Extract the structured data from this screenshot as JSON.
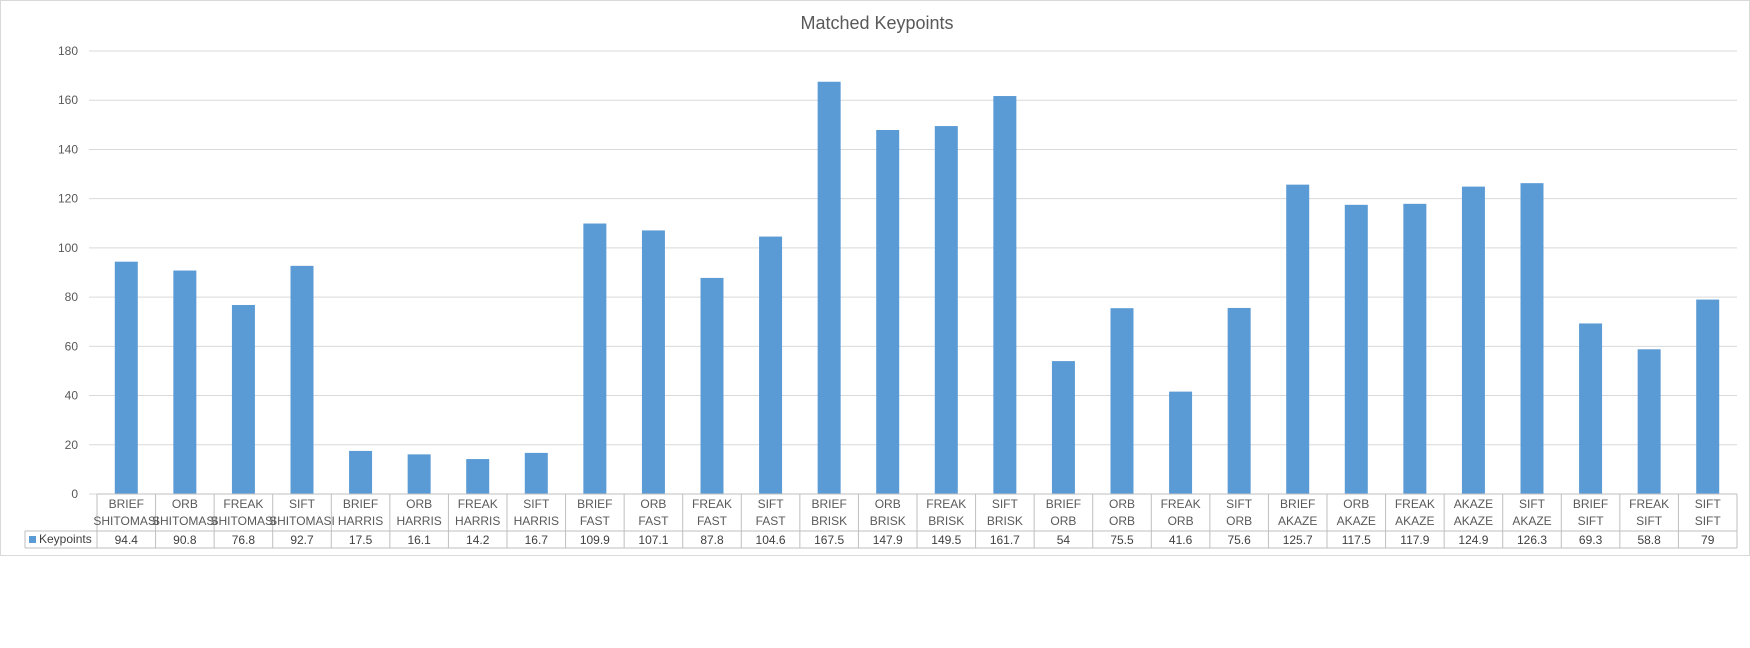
{
  "chart_data": {
    "type": "bar",
    "title": "Matched Keypoints",
    "categories": [
      [
        "BRIEF",
        "SHITOMASI"
      ],
      [
        "ORB",
        "SHITOMASI"
      ],
      [
        "FREAK",
        "SHITOMASI"
      ],
      [
        "SIFT",
        "SHITOMASI"
      ],
      [
        "BRIEF",
        "HARRIS"
      ],
      [
        "ORB",
        "HARRIS"
      ],
      [
        "FREAK",
        "HARRIS"
      ],
      [
        "SIFT",
        "HARRIS"
      ],
      [
        "BRIEF",
        "FAST"
      ],
      [
        "ORB",
        "FAST"
      ],
      [
        "FREAK",
        "FAST"
      ],
      [
        "SIFT",
        "FAST"
      ],
      [
        "BRIEF",
        "BRISK"
      ],
      [
        "ORB",
        "BRISK"
      ],
      [
        "FREAK",
        "BRISK"
      ],
      [
        "SIFT",
        "BRISK"
      ],
      [
        "BRIEF",
        "ORB"
      ],
      [
        "ORB",
        "ORB"
      ],
      [
        "FREAK",
        "ORB"
      ],
      [
        "SIFT",
        "ORB"
      ],
      [
        "BRIEF",
        "AKAZE"
      ],
      [
        "ORB",
        "AKAZE"
      ],
      [
        "FREAK",
        "AKAZE"
      ],
      [
        "AKAZE",
        "AKAZE"
      ],
      [
        "SIFT",
        "AKAZE"
      ],
      [
        "BRIEF",
        "SIFT"
      ],
      [
        "FREAK",
        "SIFT"
      ],
      [
        "SIFT",
        "SIFT"
      ]
    ],
    "series": [
      {
        "name": "Keypoints",
        "color": "#5b9bd5",
        "values": [
          94.4,
          90.8,
          76.8,
          92.7,
          17.5,
          16.1,
          14.2,
          16.7,
          109.9,
          107.1,
          87.8,
          104.6,
          167.5,
          147.9,
          149.5,
          161.7,
          54,
          75.5,
          41.6,
          75.6,
          125.7,
          117.5,
          117.9,
          124.9,
          126.3,
          69.3,
          58.8,
          79
        ]
      }
    ],
    "ylim": [
      0,
      180
    ],
    "yticks": [
      0,
      20,
      40,
      60,
      80,
      100,
      120,
      140,
      160,
      180
    ],
    "grid": true,
    "legend": "data-table-left",
    "data_table": true,
    "xlabel": "",
    "ylabel": ""
  }
}
